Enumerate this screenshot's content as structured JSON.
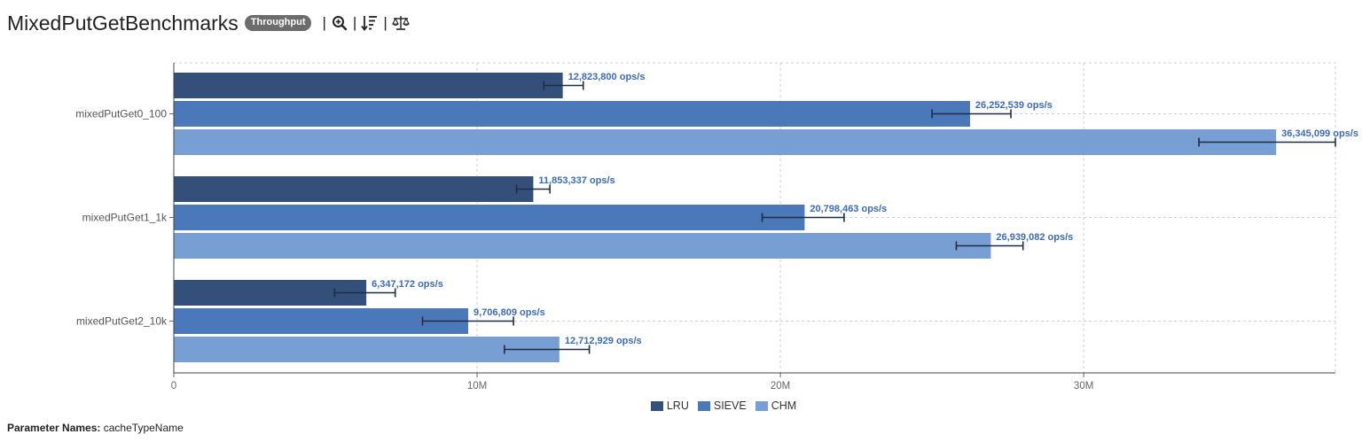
{
  "header": {
    "title": "MixedPutGetBenchmarks",
    "badge": "Throughput",
    "separator": "|",
    "tools": [
      {
        "name": "zoom",
        "icon": "zoom-in-icon"
      },
      {
        "name": "sort",
        "icon": "sort-descending-icon"
      },
      {
        "name": "compare",
        "icon": "scale-balance-icon"
      }
    ]
  },
  "colors": {
    "LRU": "#34507a",
    "SIEVE": "#4a78b8",
    "CHM": "#779fd4",
    "label": "#3d6bb3",
    "error": "#1e2c44"
  },
  "chart_data": {
    "type": "bar",
    "orientation": "horizontal",
    "categories": [
      "mixedPutGet0_100",
      "mixedPutGet1_1k",
      "mixedPutGet2_10k"
    ],
    "series": [
      {
        "name": "LRU",
        "values": [
          12823800,
          11853337,
          6347172
        ],
        "error_low": [
          12200000,
          11300000,
          5300000
        ],
        "error_high": [
          13500000,
          12400000,
          7300000
        ],
        "labels": [
          "12,823,800 ops/s",
          "11,853,337 ops/s",
          "6,347,172 ops/s"
        ]
      },
      {
        "name": "SIEVE",
        "values": [
          26252539,
          20798463,
          9706809
        ],
        "error_low": [
          25000000,
          19400000,
          8200000
        ],
        "error_high": [
          27600000,
          22100000,
          11200000
        ],
        "labels": [
          "26,252,539 ops/s",
          "20,798,463 ops/s",
          "9,706,809 ops/s"
        ]
      },
      {
        "name": "CHM",
        "values": [
          36345099,
          26939082,
          12712929
        ],
        "error_low": [
          33800000,
          25800000,
          10900000
        ],
        "error_high": [
          38300000,
          28000000,
          13700000
        ],
        "labels": [
          "36,345,099 ops/s",
          "26,939,082 ops/s",
          "12,712,929 ops/s"
        ]
      }
    ],
    "x_ticks": [
      0,
      10000000,
      20000000,
      30000000
    ],
    "x_tick_labels": [
      "0",
      "10M",
      "20M",
      "30M"
    ],
    "xlim": [
      0,
      38300000
    ],
    "grid": true,
    "legend_position": "bottom"
  },
  "footer": {
    "param_label": "Parameter Names:",
    "param_value": "cacheTypeName"
  }
}
